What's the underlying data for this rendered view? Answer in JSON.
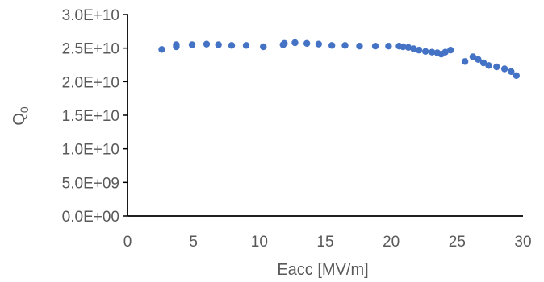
{
  "chart_data": {
    "type": "scatter",
    "xlabel": "Eacc [MV/m]",
    "ylabel": "Q",
    "ylabel_subscript": "0",
    "xlim": [
      0,
      30
    ],
    "ylim": [
      0,
      30000000000
    ],
    "x_ticks": [
      "0",
      "5",
      "10",
      "15",
      "20",
      "25",
      "30"
    ],
    "y_ticks": [
      "0.0E+00",
      "5.0E+09",
      "1.0E+10",
      "1.5E+10",
      "2.0E+10",
      "2.5E+10",
      "3.0E+10"
    ],
    "grid": false,
    "legend": "none",
    "colors": {
      "marker": "#4472C4",
      "axis": "#000000",
      "text": "#595959"
    },
    "series": [
      {
        "x": [
          2.6,
          3.7,
          3.7,
          4.9,
          6.0,
          6.9,
          7.9,
          9.0,
          10.3,
          11.8,
          11.9,
          12.7,
          13.6,
          14.5,
          15.5,
          16.5,
          17.6,
          18.8,
          19.8,
          20.6,
          20.9,
          21.3,
          21.7,
          22.1,
          22.6,
          23.1,
          23.5,
          23.8,
          24.1,
          24.5,
          25.6,
          26.2,
          26.6,
          27.0,
          27.4,
          28.0,
          28.6,
          29.1,
          29.5
        ],
        "y": [
          24800000000,
          25200000000,
          25500000000,
          25500000000,
          25600000000,
          25500000000,
          25400000000,
          25400000000,
          25200000000,
          25500000000,
          25700000000,
          25800000000,
          25700000000,
          25600000000,
          25400000000,
          25400000000,
          25300000000,
          25300000000,
          25300000000,
          25300000000,
          25200000000,
          25100000000,
          24900000000,
          24700000000,
          24500000000,
          24400000000,
          24300000000,
          24100000000,
          24400000000,
          24700000000,
          23000000000,
          23700000000,
          23300000000,
          22800000000,
          22400000000,
          22200000000,
          21900000000,
          21500000000,
          20900000000
        ]
      }
    ]
  }
}
